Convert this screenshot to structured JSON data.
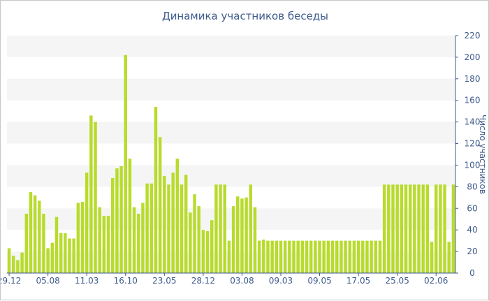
{
  "chart_data": {
    "type": "bar",
    "title": "Динамика участников беседы",
    "xlabel": "",
    "ylabel": "Число участников",
    "ylim": [
      0,
      220
    ],
    "ytick_step": 20,
    "y_axis_side": "right",
    "grid": "alternating horizontal bands",
    "legend": "none",
    "bar_color": "#b8db2c",
    "band_color": "#f5f5f5",
    "text_color": "#3e5a8c",
    "x_tick_labels": [
      "29.12",
      "05.08",
      "11.03",
      "16.10",
      "23.05",
      "28.12",
      "03.08",
      "09.03",
      "09.05",
      "17.05",
      "25.05",
      "02.06"
    ],
    "x_tick_bar_index": [
      0,
      9,
      18,
      27,
      36,
      45,
      54,
      63,
      72,
      81,
      90,
      99
    ],
    "values": [
      23,
      16,
      12,
      19,
      55,
      75,
      72,
      67,
      55,
      23,
      28,
      52,
      37,
      37,
      32,
      32,
      65,
      66,
      93,
      146,
      140,
      61,
      53,
      53,
      88,
      97,
      99,
      202,
      106,
      61,
      55,
      65,
      83,
      83,
      154,
      126,
      90,
      82,
      93,
      106,
      82,
      91,
      56,
      73,
      62,
      40,
      39,
      49,
      82,
      82,
      82,
      30,
      62,
      71,
      69,
      70,
      82,
      61,
      30,
      31,
      30,
      30,
      30,
      30,
      30,
      30,
      30,
      30,
      30,
      30,
      30,
      30,
      30,
      30,
      30,
      30,
      30,
      30,
      30,
      30,
      30,
      30,
      30,
      30,
      30,
      30,
      30,
      82,
      82,
      82,
      82,
      82,
      82,
      82,
      82,
      82,
      82,
      82,
      29,
      82,
      82,
      82,
      29,
      82
    ]
  }
}
